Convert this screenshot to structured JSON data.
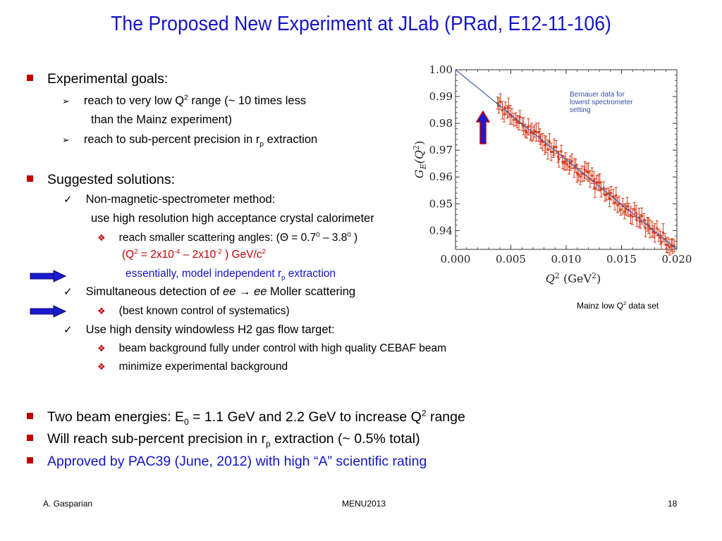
{
  "title": "The Proposed New Experiment at JLab (PRad,  E12-11-106)",
  "goals": {
    "heading": "Experimental goals:",
    "item1_a": "reach to very low Q",
    "item1_sup": "2",
    "item1_b": " range (~ 10 times less",
    "item1_cont": "than the Mainz experiment)",
    "item2_a": "reach to sub-percent precision in r",
    "item2_sub": "p",
    "item2_b": "  extraction"
  },
  "solutions": {
    "heading": "Suggested solutions:",
    "s1": "Non-magnetic-spectrometer method:",
    "s1_cont": "use high resolution high acceptance crystal calorimeter",
    "s1_sub1_a": "reach smaller scattering angles: (Θ = 0.7",
    "s1_sub1_sup1": "0",
    "s1_sub1_b": " – 3.8",
    "s1_sub1_sup2": "0",
    "s1_sub1_c": " )",
    "q2_a": "(Q",
    "q2_sup1": "2",
    "q2_b": " = 2x10",
    "q2_sup2": "-4",
    "q2_c": " – 2x10",
    "q2_sup3": "-2",
    "q2_d": " ) GeV/c",
    "q2_sup4": "2",
    "model_a": "essentially, model independent r",
    "model_sub": "p",
    "model_b": " extraction",
    "s2_a": "Simultaneous detection of ",
    "s2_em": "ee → ee",
    "s2_b": " Moller scattering",
    "s2_sub": "(best known control of systematics)",
    "s3": "Use high density windowless H2 gas flow target:",
    "s3_sub1": "beam background fully under control with high quality CEBAF beam",
    "s3_sub2": "minimize experimental background"
  },
  "bottom": {
    "b1_a": "Two beam energies: E",
    "b1_sub": "0",
    "b1_b": " = 1.1 GeV and 2.2 GeV to increase Q",
    "b1_sup": "2",
    "b1_c": " range",
    "b2_a": "Will reach sub-percent precision in r",
    "b2_sub": "p",
    "b2_b": " extraction (~ 0.5% total)",
    "b3": "Approved by PAC39 (June, 2012) with high “A” scientific rating"
  },
  "figure": {
    "caption_a": "Mainz low Q",
    "caption_sup": "2",
    "caption_b": " data set"
  },
  "footer": {
    "author": "A. Gasparian",
    "conference": "MENU2013",
    "page": "18"
  },
  "colors": {
    "title": "#1414c8",
    "bullet": "#c00000",
    "arrow": "#1a1ad0",
    "data_points": "#d83a1a",
    "fit_line": "#3f5fa8"
  },
  "chart_data": {
    "type": "scatter",
    "title": "",
    "annotation": [
      "Bernauer data for",
      "lowest spectrometer",
      "setting"
    ],
    "xlabel_base": "Q",
    "xlabel_sup": "2",
    "xlabel_units": " (GeV",
    "xlabel_units_sup": "2",
    "xlabel_close": ")",
    "ylabel_a": "G",
    "ylabel_sub": "E",
    "ylabel_b": "(Q",
    "ylabel_sup": "2",
    "ylabel_c": ")",
    "xlim": [
      0.0,
      0.02
    ],
    "ylim": [
      0.933,
      1.0
    ],
    "x_ticks": [
      "0.000",
      "0.005",
      "0.010",
      "0.015",
      "0.020"
    ],
    "y_ticks": [
      "1.00",
      "0.99",
      "0.98",
      "0.97",
      "0.96",
      "0.95",
      "0.94"
    ],
    "fit_line": {
      "x": [
        0.0,
        0.02
      ],
      "y": [
        1.0,
        0.933
      ]
    },
    "points_x_range": [
      0.0038,
      0.0198
    ],
    "points_count": 110,
    "error_bar": 0.003,
    "scatter": 0.0022
  }
}
